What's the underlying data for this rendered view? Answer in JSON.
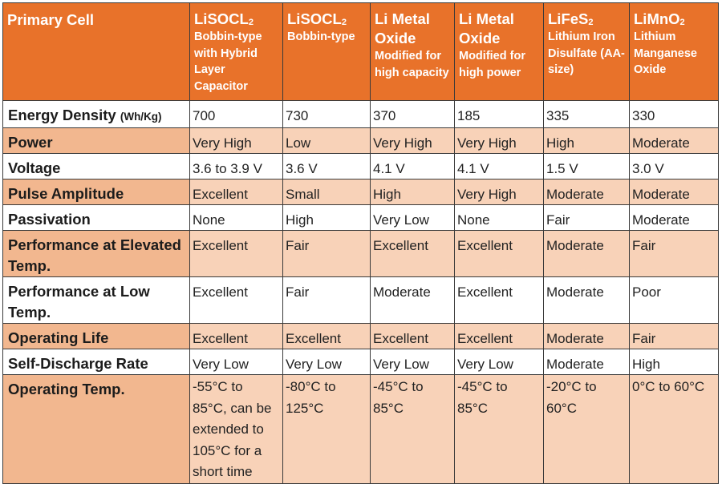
{
  "header": {
    "first": "Primary Cell",
    "columns": [
      {
        "main": "LiSOCL",
        "sub_script": "2",
        "desc": "Bobbin-type with Hybrid Layer Capacitor"
      },
      {
        "main": "LiSOCL",
        "sub_script": "2",
        "desc": "Bobbin-type"
      },
      {
        "main": "Li Metal Oxide",
        "sub_script": "",
        "desc": "Modified for high capacity"
      },
      {
        "main": "Li Metal Oxide",
        "sub_script": "",
        "desc": "Modified for high power"
      },
      {
        "main": "LiFeS",
        "sub_script": "2",
        "desc": "Lithium Iron Disulfate (AA-size)"
      },
      {
        "main": "LiMnO",
        "sub_script": "2",
        "desc": "Lithium Manganese Oxide"
      }
    ]
  },
  "rows": [
    {
      "label": "Energy Density",
      "unit": "(Wh/Kg)",
      "values": [
        "700",
        "730",
        "370",
        "185",
        "335",
        "330"
      ]
    },
    {
      "label": "Power",
      "values": [
        "Very High",
        "Low",
        "Very High",
        "Very High",
        "High",
        "Moderate"
      ]
    },
    {
      "label": "Voltage",
      "values": [
        "3.6 to 3.9 V",
        "3.6 V",
        "4.1 V",
        "4.1 V",
        "1.5 V",
        "3.0 V"
      ]
    },
    {
      "label": "Pulse Amplitude",
      "values": [
        "Excellent",
        "Small",
        "High",
        "Very High",
        "Moderate",
        "Moderate"
      ]
    },
    {
      "label": "Passivation",
      "values": [
        "None",
        "High",
        "Very Low",
        "None",
        "Fair",
        "Moderate"
      ]
    },
    {
      "label": "Performance at Elevated Temp.",
      "values": [
        "Excellent",
        "Fair",
        "Excellent",
        "Excellent",
        "Moderate",
        "Fair"
      ]
    },
    {
      "label": "Performance at Low Temp.",
      "values": [
        "Excellent",
        "Fair",
        "Moderate",
        "Excellent",
        "Moderate",
        "Poor"
      ]
    },
    {
      "label": "Operating Life",
      "values": [
        "Excellent",
        "Excellent",
        "Excellent",
        "Excellent",
        "Moderate",
        "Fair"
      ]
    },
    {
      "label": "Self-Discharge Rate",
      "values": [
        "Very Low",
        "Very Low",
        "Very Low",
        "Very Low",
        "Moderate",
        "High"
      ]
    },
    {
      "label": "Operating Temp.",
      "values": [
        "-55°C to 85°C, can be extended to 105°C for a short time",
        "-80°C to 125°C",
        "-45°C to 85°C",
        "-45°C to 85°C",
        "-20°C to 60°C",
        "0°C to 60°C"
      ]
    }
  ],
  "colors": {
    "header": "#e8722a",
    "label_shade": "#f2b78f",
    "row_shade": "#f8d2b8"
  }
}
